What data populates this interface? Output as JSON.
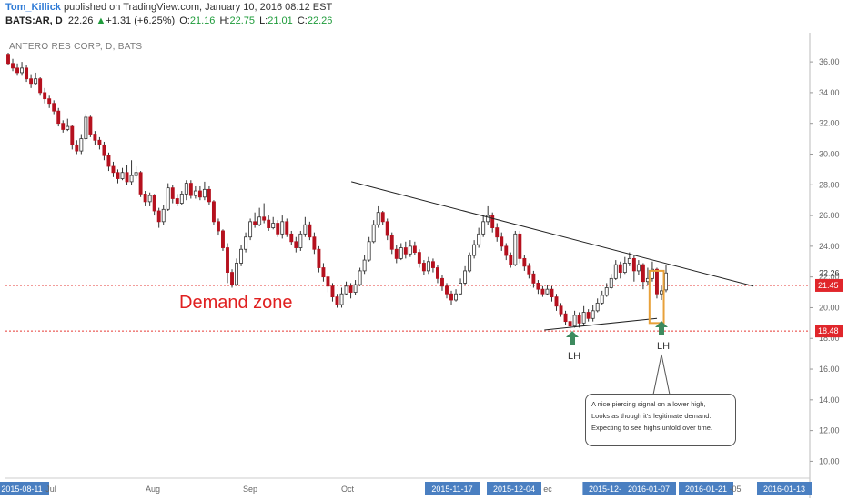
{
  "header": {
    "author": "Tom_Killick",
    "published_text": "published on TradingView.com, January 10, 2016 08:12 EST",
    "symbol": "BATS:AR, D",
    "last": "22.26",
    "change": "+1.31 (+6.25%)",
    "open_label": "O:",
    "open": "21.16",
    "high_label": "H:",
    "high": "22.75",
    "low_label": "L:",
    "low": "21.01",
    "close_label": "C:",
    "close": "22.26"
  },
  "chart_title": "ANTERO RES CORP, D, BATS",
  "annotations": {
    "demand_zone": "Demand zone",
    "lh_left": "LH",
    "lh_right": "LH",
    "callout_lines": [
      "A nice piercing signal on a lower high,",
      "Looks as though it's legitimate demand.",
      "Expecting to see highs unfold over time."
    ]
  },
  "colors": {
    "up_candle": "#ffffff",
    "down_candle": "#b5111e",
    "level_line": "#e53935",
    "trendline": "#222222",
    "arrow": "#3d8a5e",
    "highlight_box": "#e8a13a",
    "axis_badge": "#4a7fc1"
  },
  "chart_data": {
    "type": "candlestick",
    "y_axis": {
      "ticks": [
        "36.00",
        "34.00",
        "32.00",
        "30.00",
        "28.00",
        "26.00",
        "24.00",
        "22.00",
        "20.00",
        "18.00",
        "16.00",
        "14.00",
        "12.00",
        "10.00"
      ],
      "tick_values": [
        36,
        34,
        32,
        30,
        28,
        26,
        24,
        22,
        20,
        18,
        16,
        14,
        12,
        10
      ],
      "ylim": [
        8.9,
        37.9
      ],
      "last_price_label": "22.26",
      "level_labels": [
        "21.45",
        "18.48"
      ]
    },
    "x_axis": {
      "labels": [
        {
          "text": "2015-08-11",
          "boxed": true
        },
        {
          "text": "Jul",
          "boxed": false
        },
        {
          "text": "Aug",
          "boxed": false
        },
        {
          "text": "Sep",
          "boxed": false
        },
        {
          "text": "Oct",
          "boxed": false
        },
        {
          "text": "2015-11-17",
          "boxed": true
        },
        {
          "text": "2015-12-04",
          "boxed": true
        },
        {
          "text": "ec",
          "boxed": false
        },
        {
          "text": "2015-12-",
          "boxed": true
        },
        {
          "text": "2016-01-07",
          "boxed": true
        },
        {
          "text": "2016-01-21",
          "boxed": true
        },
        {
          "text": "-05",
          "boxed": false
        },
        {
          "text": "2016-01-13",
          "boxed": true
        }
      ]
    },
    "levels": [
      21.45,
      18.48
    ],
    "trendlines": [
      {
        "from": [
          0.43,
          28.2
        ],
        "to": [
          0.93,
          21.4
        ]
      },
      {
        "from": [
          0.67,
          18.55
        ],
        "to": [
          0.81,
          19.3
        ]
      }
    ],
    "candles": [
      [
        36.5,
        35.9,
        36.6,
        35.8
      ],
      [
        35.9,
        35.6,
        36.2,
        35.4
      ],
      [
        35.6,
        35.3,
        35.9,
        35.1
      ],
      [
        35.3,
        35.6,
        36.0,
        35.1
      ],
      [
        35.6,
        34.9,
        35.8,
        34.7
      ],
      [
        34.9,
        34.6,
        35.2,
        34.3
      ],
      [
        34.6,
        34.9,
        35.3,
        34.5
      ],
      [
        34.9,
        34.0,
        35.0,
        33.8
      ],
      [
        34.0,
        33.6,
        34.3,
        33.3
      ],
      [
        33.6,
        33.3,
        33.8,
        33.0
      ],
      [
        33.3,
        32.8,
        33.5,
        32.6
      ],
      [
        32.8,
        32.0,
        33.0,
        31.8
      ],
      [
        32.0,
        31.6,
        32.2,
        31.4
      ],
      [
        31.6,
        31.8,
        32.3,
        31.5
      ],
      [
        31.8,
        30.6,
        31.9,
        30.3
      ],
      [
        30.6,
        30.2,
        30.9,
        30.0
      ],
      [
        30.2,
        31.0,
        31.3,
        30.0
      ],
      [
        31.0,
        32.4,
        32.6,
        30.9
      ],
      [
        32.4,
        31.3,
        32.5,
        31.1
      ],
      [
        31.3,
        30.9,
        31.5,
        30.6
      ],
      [
        30.9,
        30.6,
        31.1,
        30.3
      ],
      [
        30.6,
        29.9,
        30.8,
        29.6
      ],
      [
        29.9,
        29.2,
        30.1,
        28.9
      ],
      [
        29.2,
        28.8,
        29.5,
        28.5
      ],
      [
        28.8,
        28.4,
        29.0,
        28.1
      ],
      [
        28.4,
        28.8,
        29.1,
        28.3
      ],
      [
        28.8,
        28.2,
        29.3,
        28.0
      ],
      [
        28.2,
        28.6,
        29.6,
        28.0
      ],
      [
        28.6,
        28.8,
        29.2,
        28.4
      ],
      [
        28.8,
        27.4,
        28.9,
        27.2
      ],
      [
        27.4,
        26.9,
        27.6,
        26.6
      ],
      [
        26.9,
        27.3,
        27.5,
        26.6
      ],
      [
        27.3,
        26.3,
        27.4,
        26.0
      ],
      [
        26.3,
        25.6,
        26.5,
        25.2
      ],
      [
        25.6,
        26.4,
        26.7,
        25.4
      ],
      [
        26.4,
        27.8,
        28.1,
        26.3
      ],
      [
        27.8,
        27.1,
        28.0,
        26.8
      ],
      [
        27.1,
        26.8,
        27.4,
        26.6
      ],
      [
        26.8,
        27.4,
        27.6,
        26.7
      ],
      [
        27.4,
        28.1,
        28.3,
        27.0
      ],
      [
        28.1,
        27.3,
        28.3,
        27.1
      ],
      [
        27.3,
        27.6,
        27.9,
        27.1
      ],
      [
        27.6,
        27.2,
        27.9,
        27.0
      ],
      [
        27.2,
        27.7,
        28.2,
        27.0
      ],
      [
        27.7,
        26.9,
        27.9,
        26.7
      ],
      [
        26.9,
        25.6,
        27.0,
        25.4
      ],
      [
        25.6,
        25.0,
        25.8,
        24.7
      ],
      [
        25.0,
        23.9,
        25.1,
        23.7
      ],
      [
        23.9,
        22.3,
        24.2,
        21.6
      ],
      [
        22.3,
        21.5,
        22.5,
        21.3
      ],
      [
        21.5,
        22.9,
        23.2,
        21.4
      ],
      [
        22.9,
        23.8,
        24.1,
        22.7
      ],
      [
        23.8,
        24.6,
        24.9,
        23.6
      ],
      [
        24.6,
        25.6,
        25.8,
        24.4
      ],
      [
        25.6,
        25.4,
        26.2,
        25.2
      ],
      [
        25.4,
        25.9,
        26.5,
        25.3
      ],
      [
        25.9,
        25.7,
        26.8,
        25.5
      ],
      [
        25.7,
        25.2,
        26.0,
        25.0
      ],
      [
        25.2,
        25.5,
        25.9,
        25.1
      ],
      [
        25.5,
        24.8,
        25.7,
        24.6
      ],
      [
        24.8,
        25.6,
        26.0,
        24.5
      ],
      [
        25.6,
        24.8,
        25.8,
        24.6
      ],
      [
        24.8,
        24.3,
        25.0,
        24.1
      ],
      [
        24.3,
        23.9,
        24.6,
        23.6
      ],
      [
        23.9,
        24.8,
        25.0,
        23.7
      ],
      [
        24.8,
        25.4,
        25.9,
        24.6
      ],
      [
        25.4,
        24.6,
        25.6,
        24.4
      ],
      [
        24.6,
        23.8,
        24.9,
        23.5
      ],
      [
        23.8,
        22.6,
        24.0,
        22.3
      ],
      [
        22.6,
        22.0,
        22.9,
        21.7
      ],
      [
        22.0,
        21.4,
        22.3,
        21.0
      ],
      [
        21.4,
        20.7,
        21.6,
        20.4
      ],
      [
        20.7,
        20.2,
        20.9,
        20.0
      ],
      [
        20.2,
        20.9,
        21.3,
        20.0
      ],
      [
        20.9,
        21.4,
        21.7,
        20.8
      ],
      [
        21.4,
        21.0,
        21.6,
        20.6
      ],
      [
        21.0,
        21.5,
        21.8,
        20.8
      ],
      [
        21.5,
        22.4,
        22.6,
        21.4
      ],
      [
        22.4,
        23.1,
        23.4,
        22.2
      ],
      [
        23.1,
        24.3,
        24.6,
        23.0
      ],
      [
        24.3,
        25.4,
        25.7,
        24.2
      ],
      [
        25.4,
        26.2,
        26.6,
        25.2
      ],
      [
        26.2,
        25.6,
        26.3,
        25.4
      ],
      [
        25.6,
        24.7,
        25.8,
        24.4
      ],
      [
        24.7,
        23.8,
        24.9,
        23.5
      ],
      [
        23.8,
        23.2,
        24.1,
        22.9
      ],
      [
        23.2,
        23.9,
        24.2,
        23.1
      ],
      [
        23.9,
        23.5,
        24.3,
        23.2
      ],
      [
        23.5,
        24.0,
        24.4,
        23.3
      ],
      [
        24.0,
        23.6,
        24.3,
        23.4
      ],
      [
        23.6,
        22.9,
        23.8,
        22.6
      ],
      [
        22.9,
        22.4,
        23.1,
        22.1
      ],
      [
        22.4,
        23.0,
        23.3,
        22.2
      ],
      [
        23.0,
        22.6,
        23.2,
        22.3
      ],
      [
        22.6,
        21.9,
        22.8,
        21.6
      ],
      [
        21.9,
        21.4,
        22.1,
        21.1
      ],
      [
        21.4,
        20.9,
        21.6,
        20.6
      ],
      [
        20.9,
        20.5,
        21.1,
        20.2
      ],
      [
        20.5,
        20.9,
        21.2,
        20.4
      ],
      [
        20.9,
        21.6,
        21.9,
        20.8
      ],
      [
        21.6,
        22.4,
        22.7,
        21.5
      ],
      [
        22.4,
        23.4,
        23.6,
        22.3
      ],
      [
        23.4,
        24.1,
        24.4,
        23.2
      ],
      [
        24.1,
        24.8,
        25.2,
        23.9
      ],
      [
        24.8,
        25.6,
        26.0,
        24.6
      ],
      [
        25.6,
        26.0,
        26.6,
        25.4
      ],
      [
        26.0,
        25.2,
        26.2,
        24.9
      ],
      [
        25.2,
        24.6,
        25.5,
        24.3
      ],
      [
        24.6,
        24.0,
        24.9,
        23.7
      ],
      [
        24.0,
        23.4,
        24.2,
        23.1
      ],
      [
        23.4,
        22.8,
        23.6,
        22.6
      ],
      [
        22.8,
        24.8,
        25.0,
        22.7
      ],
      [
        24.8,
        23.2,
        25.0,
        22.9
      ],
      [
        23.2,
        22.7,
        23.4,
        22.4
      ],
      [
        22.7,
        22.2,
        22.9,
        21.9
      ],
      [
        22.2,
        21.6,
        22.4,
        21.3
      ],
      [
        21.6,
        21.2,
        21.8,
        20.9
      ],
      [
        21.2,
        20.9,
        21.4,
        20.7
      ],
      [
        20.9,
        21.2,
        21.5,
        20.8
      ],
      [
        21.2,
        20.7,
        21.4,
        20.4
      ],
      [
        20.7,
        20.1,
        20.9,
        19.8
      ],
      [
        20.1,
        19.6,
        20.3,
        19.4
      ],
      [
        19.6,
        19.1,
        19.8,
        18.9
      ],
      [
        19.1,
        18.8,
        19.4,
        18.6
      ],
      [
        18.8,
        19.5,
        19.8,
        18.7
      ],
      [
        19.5,
        19.0,
        19.7,
        18.7
      ],
      [
        19.0,
        19.7,
        20.1,
        18.9
      ],
      [
        19.7,
        19.3,
        19.9,
        19.1
      ],
      [
        19.3,
        19.8,
        20.2,
        19.1
      ],
      [
        19.8,
        20.3,
        20.6,
        19.7
      ],
      [
        20.3,
        20.8,
        21.1,
        20.2
      ],
      [
        20.8,
        21.3,
        21.6,
        20.7
      ],
      [
        21.3,
        21.9,
        22.2,
        21.2
      ],
      [
        21.9,
        22.8,
        23.1,
        21.8
      ],
      [
        22.8,
        22.3,
        23.0,
        21.9
      ],
      [
        22.3,
        22.9,
        23.3,
        22.2
      ],
      [
        22.9,
        23.2,
        23.6,
        22.7
      ],
      [
        23.2,
        22.4,
        23.4,
        21.7
      ],
      [
        22.4,
        22.8,
        23.1,
        22.1
      ],
      [
        22.8,
        21.7,
        22.9,
        21.2
      ],
      [
        21.7,
        21.9,
        22.6,
        21.5
      ],
      [
        21.9,
        22.5,
        23.0,
        21.7
      ],
      [
        22.5,
        20.9,
        22.6,
        20.6
      ],
      [
        20.9,
        21.1,
        21.4,
        20.5
      ],
      [
        21.16,
        22.26,
        22.75,
        21.01
      ]
    ]
  }
}
